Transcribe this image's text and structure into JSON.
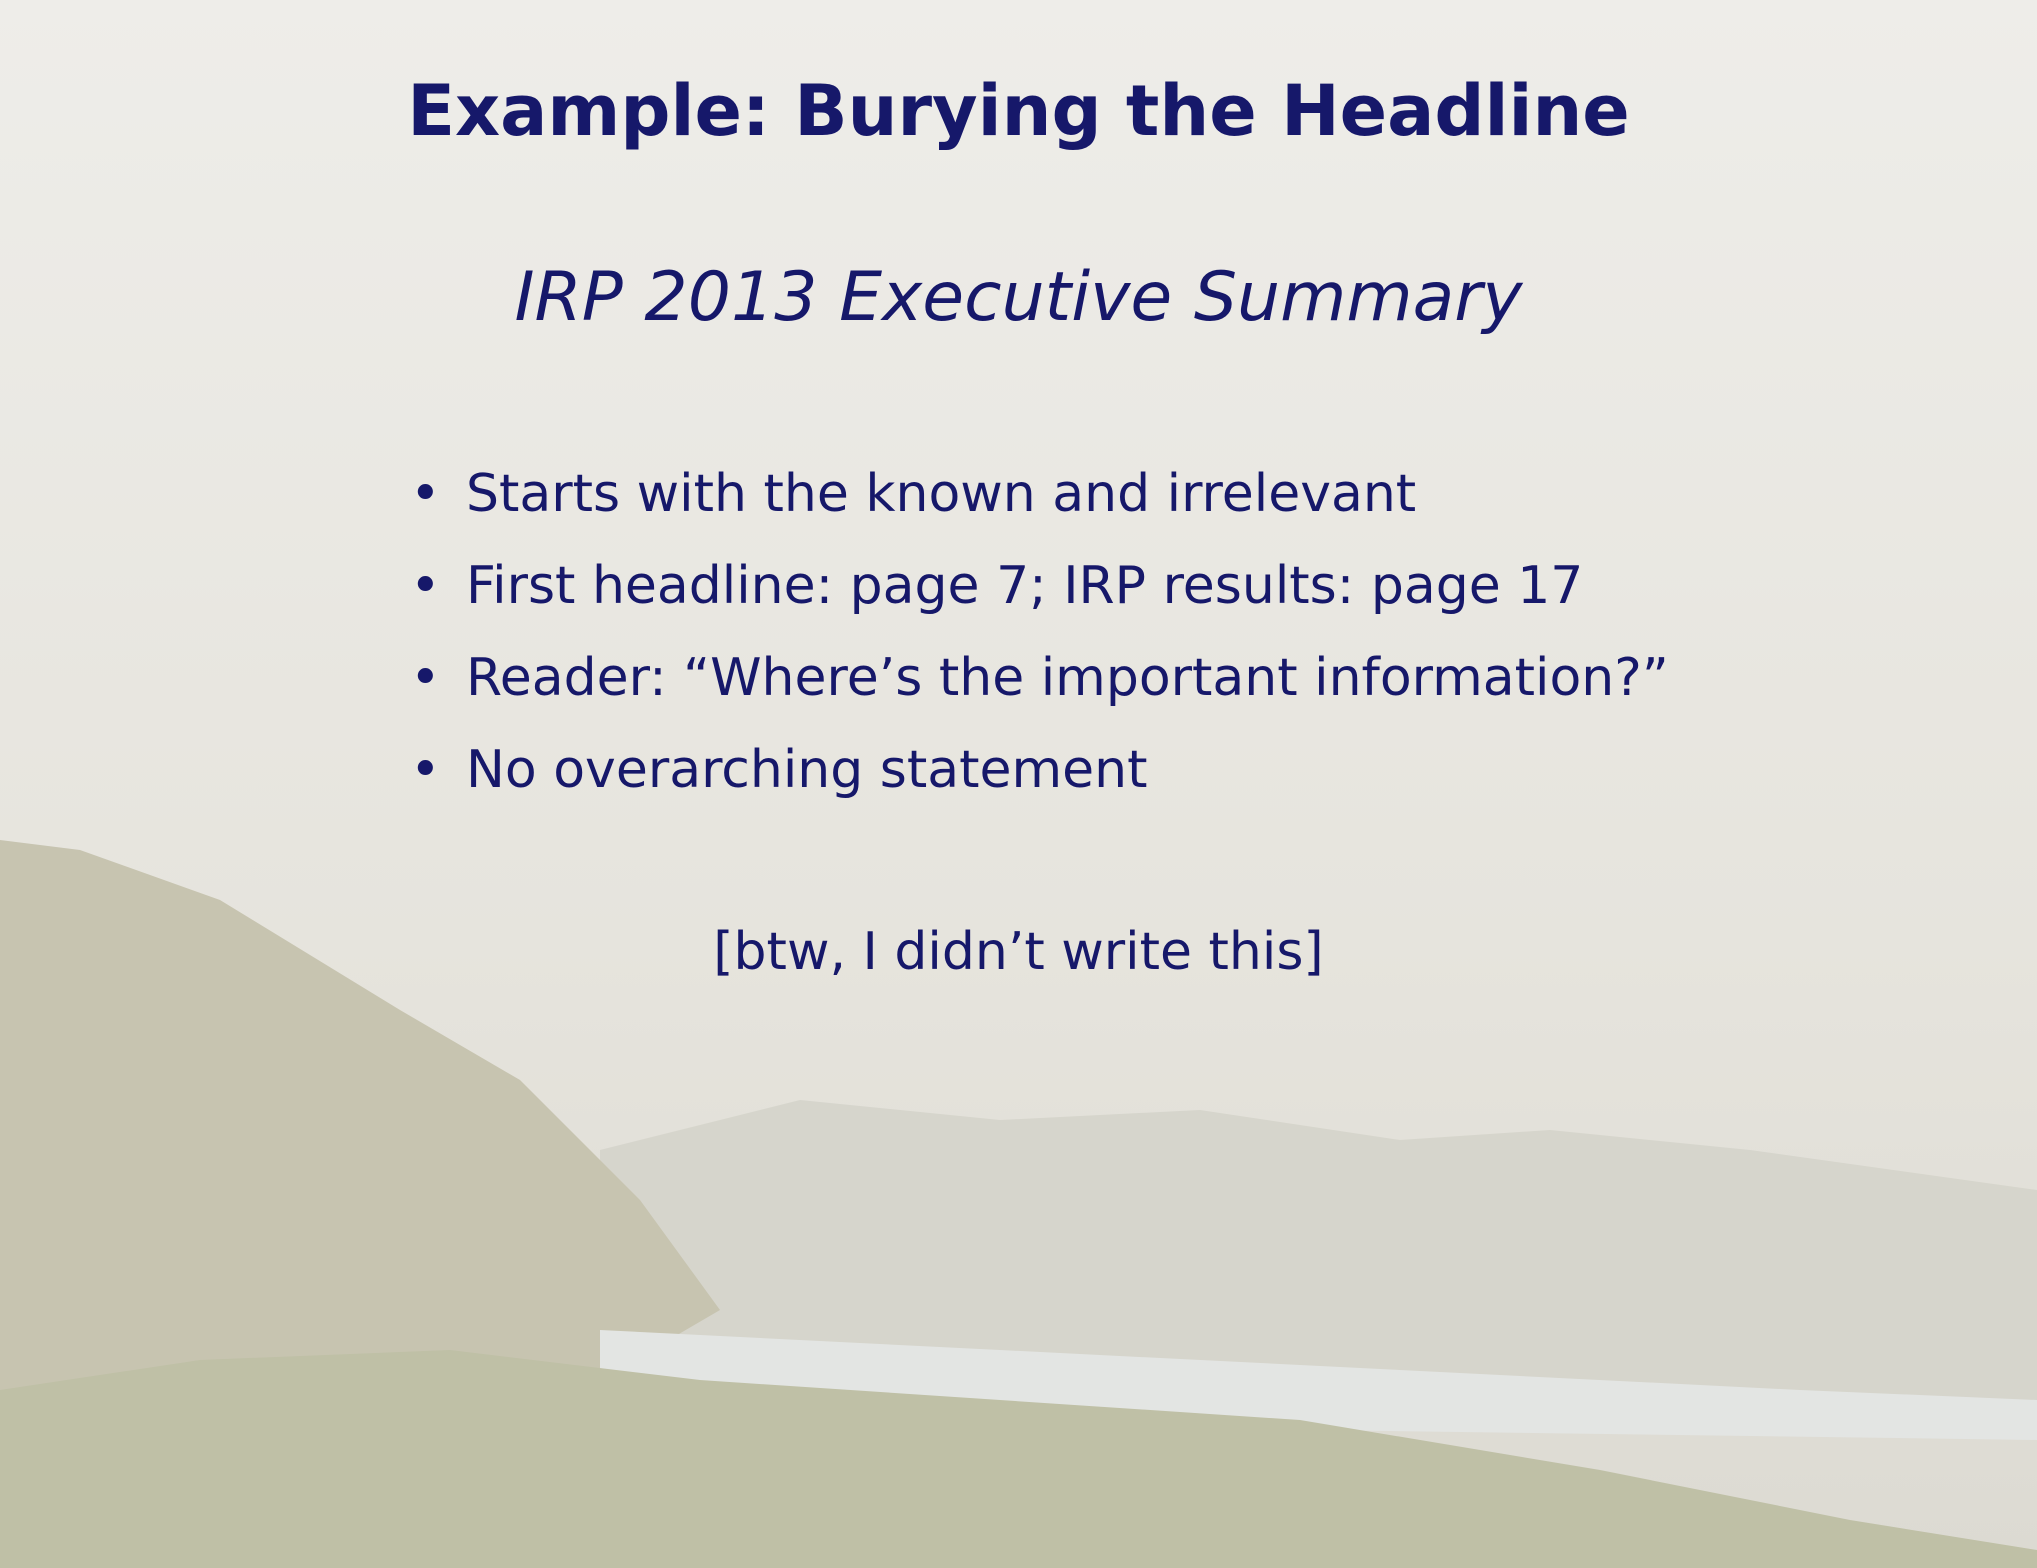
{
  "title": "Example: Burying the Headline",
  "subtitle": "IRP 2013 Executive Summary",
  "bullets": [
    "Starts with the known and irrelevant",
    "First headline: page 7; IRP results: page 17",
    "Reader: “Where’s the important information?”",
    "No overarching statement"
  ],
  "note": "[btw, I didn’t write this]"
}
